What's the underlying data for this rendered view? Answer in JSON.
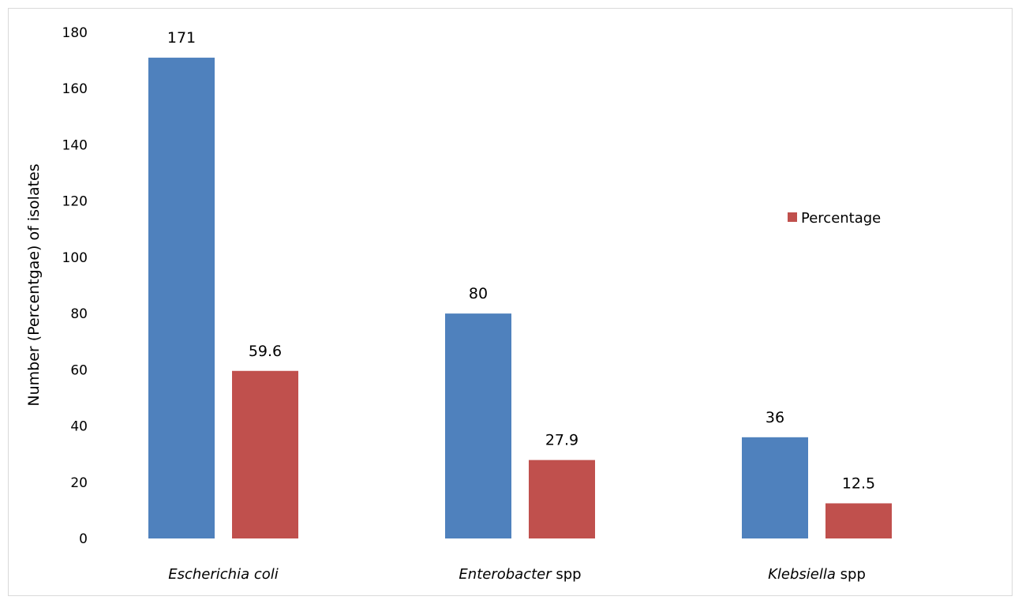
{
  "chart_data": {
    "type": "bar",
    "categories": [
      {
        "italic": "Escherichia coli",
        "plain": ""
      },
      {
        "italic": "Enterobacter",
        "plain": " spp"
      },
      {
        "italic": "Klebsiella",
        "plain": " spp"
      }
    ],
    "series": [
      {
        "values": [
          171,
          80,
          36
        ],
        "color": "#4f81bd",
        "labels": [
          "171",
          "80",
          "36"
        ]
      },
      {
        "name": "Percentage",
        "values": [
          59.6,
          27.9,
          12.5
        ],
        "color": "#c0504d",
        "labels": [
          "59.6",
          "27.9",
          "12.5"
        ]
      }
    ],
    "title": "",
    "xlabel": "",
    "ylabel": "Number (Percentgae) of isolates",
    "ylim": [
      0,
      180
    ],
    "yticks": [
      0,
      20,
      40,
      60,
      80,
      100,
      120,
      140,
      160,
      180
    ],
    "grid": false,
    "legend": {
      "entries": [
        "Percentage"
      ],
      "placement": "right"
    }
  }
}
